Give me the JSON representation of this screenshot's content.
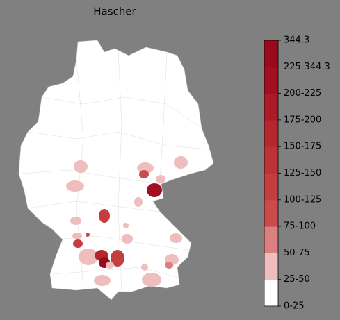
{
  "title": "Hascher",
  "colorbar": {
    "labels": [
      "0-25",
      "25-50",
      "50-75",
      "75-100",
      "100-125",
      "125-150",
      "150-175",
      "175-200",
      "200-225",
      "225-344.3",
      "344.3"
    ],
    "colors": [
      "#ffffff",
      "#eebdbd",
      "#db8080",
      "#cb4b4b",
      "#c43e40",
      "#bd3237",
      "#b4272e",
      "#ab1b27",
      "#a20f21",
      "#990a1c"
    ]
  }
}
